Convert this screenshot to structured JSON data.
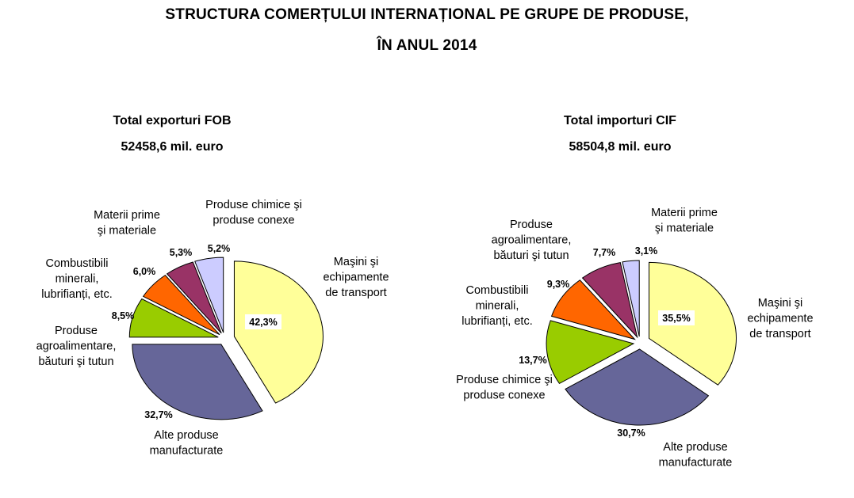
{
  "title": {
    "line1": "STRUCTURA COMERȚULUI INTERNAȚIONAL PE GRUPE DE PRODUSE,",
    "line2": "ÎN ANUL 2014"
  },
  "chart_data": [
    {
      "type": "pie",
      "title": "Total exporturi FOB",
      "subtitle": "52458,6 mil. euro",
      "slices": [
        {
          "label": "Maşini şi echipamente de transport",
          "label_lines": [
            "Maşini şi",
            "echipamente",
            "de transport"
          ],
          "value": 42.3,
          "value_label": "42,3%",
          "color": "#ffff99"
        },
        {
          "label": "Alte produse manufacturate",
          "label_lines": [
            "Alte produse",
            "manufacturate"
          ],
          "value": 32.7,
          "value_label": "32,7%",
          "color": "#666699"
        },
        {
          "label": "Produse agroalimentare, băuturi şi tutun",
          "label_lines": [
            "Produse",
            "agroalimentare,",
            "băuturi şi tutun"
          ],
          "value": 8.5,
          "value_label": "8,5%",
          "color": "#99cc00"
        },
        {
          "label": "Combustibili minerali, lubrifianți, etc.",
          "label_lines": [
            "Combustibili",
            "minerali,",
            "lubrifianți, etc."
          ],
          "value": 6.0,
          "value_label": "6,0%",
          "color": "#ff6600"
        },
        {
          "label": "Materii prime şi materiale",
          "label_lines": [
            "Materii  prime",
            "şi materiale"
          ],
          "value": 5.3,
          "value_label": "5,3%",
          "color": "#993366"
        },
        {
          "label": "Produse chimice şi produse conexe",
          "label_lines": [
            "Produse chimice şi",
            "produse conexe"
          ],
          "value": 5.2,
          "value_label": "5,2%",
          "color": "#ccccff"
        }
      ]
    },
    {
      "type": "pie",
      "title": "Total importuri  CIF",
      "subtitle": "58504,8 mil. euro",
      "slices": [
        {
          "label": "Maşini şi echipamente de transport",
          "label_lines": [
            "Maşini şi",
            "echipamente",
            "de transport"
          ],
          "value": 35.5,
          "value_label": "35,5%",
          "color": "#ffff99"
        },
        {
          "label": "Alte produse manufacturate",
          "label_lines": [
            "Alte produse",
            "manufacturate"
          ],
          "value": 30.7,
          "value_label": "30,7%",
          "color": "#666699"
        },
        {
          "label": "Produse chimice şi produse conexe",
          "label_lines": [
            "Produse chimice şi",
            "produse conexe"
          ],
          "value": 13.7,
          "value_label": "13,7%",
          "color": "#99cc00"
        },
        {
          "label": "Combustibili minerali, lubrifianți, etc.",
          "label_lines": [
            "Combustibili",
            "minerali,",
            "lubrifianți, etc."
          ],
          "value": 9.3,
          "value_label": "9,3%",
          "color": "#ff6600"
        },
        {
          "label": "Produse agroalimentare, băuturi şi tutun",
          "label_lines": [
            "Produse",
            "agroalimentare,",
            "băuturi şi tutun"
          ],
          "value": 7.7,
          "value_label": "7,7%",
          "color": "#993366"
        },
        {
          "label": "Materii prime şi materiale",
          "label_lines": [
            "Materii prime",
            "şi materiale"
          ],
          "value": 3.1,
          "value_label": "3,1%",
          "color": "#ccccff"
        }
      ]
    }
  ]
}
